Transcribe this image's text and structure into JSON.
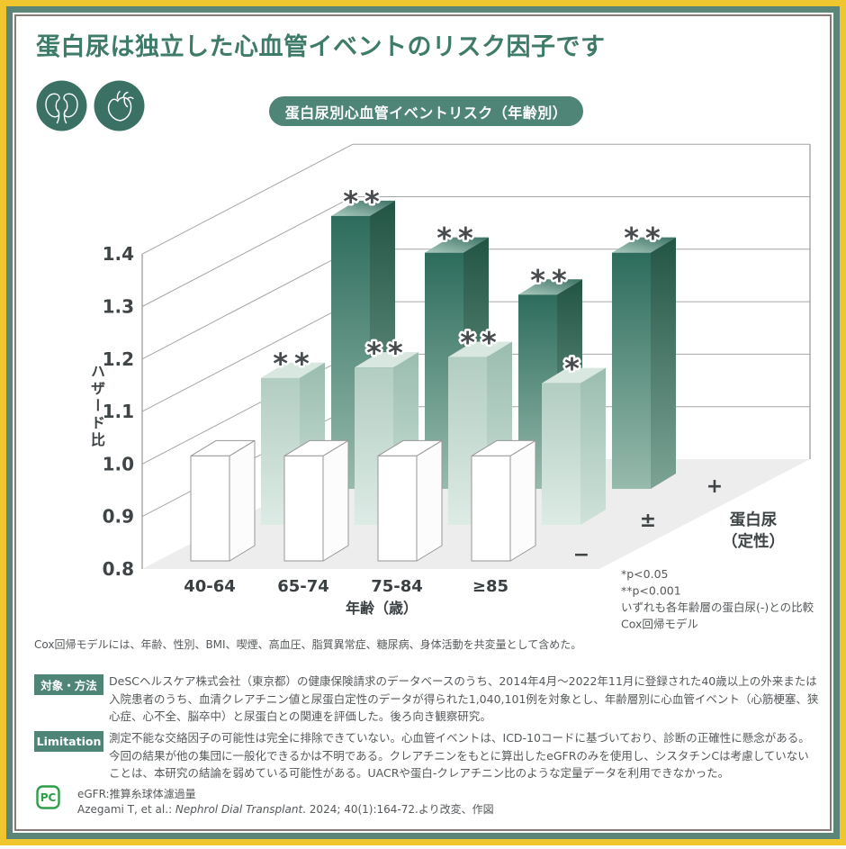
{
  "page": {
    "title": "蛋白尿は独立した心血管イベントのリスク因子です",
    "badge": "蛋白尿別心血管イベントリスク（年齢別）"
  },
  "icons": {
    "kidney": "kidneys-icon",
    "heart": "heart-icon",
    "logo": "pc-logo-icon"
  },
  "colors": {
    "frame_yellow": "#f0c62e",
    "frame_green": "#5a8577",
    "accent_green": "#4e8577",
    "title_green": "#3e7b69",
    "bar_plus_dark": "#2d6c5c",
    "bar_plusminus_light": "#c9dcd3",
    "bar_minus_white": "#ffffff",
    "logo_green": "#2f9e49",
    "floor_grey": "#ededed"
  },
  "chart_data": {
    "type": "bar",
    "title": "蛋白尿別心血管イベントリスク（年齢別）",
    "xlabel": "年齢（歳）",
    "ylabel": "ハザード比",
    "zlabel": "蛋白尿（定性）",
    "zlabel_lines": [
      "蛋白尿",
      "（定性）"
    ],
    "ylim": [
      0.8,
      1.4
    ],
    "ytick_step": 0.1,
    "grid": true,
    "categories": [
      "40-64",
      "65-74",
      "75-84",
      "≥85"
    ],
    "series": [
      {
        "name": "−",
        "values": [
          1.0,
          1.0,
          1.0,
          1.0
        ],
        "significance": [
          "",
          "",
          "",
          ""
        ]
      },
      {
        "name": "±",
        "values": [
          1.08,
          1.1,
          1.12,
          1.07
        ],
        "significance": [
          "**",
          "**",
          "**",
          "*"
        ]
      },
      {
        "name": "+",
        "values": [
          1.32,
          1.25,
          1.17,
          1.25
        ],
        "significance": [
          "**",
          "**",
          "**",
          "**"
        ]
      }
    ],
    "notes": [
      "*p<0.05",
      "**p<0.001",
      "いずれも各年齢層の蛋白尿(-)との比較",
      "Cox回帰モデル"
    ]
  },
  "chart_note": "Cox回帰モデルには、年齢、性別、BMI、喫煙、高血圧、脂質異常症、糖尿病、身体活動を共変量として含めた。",
  "sections": {
    "methods": {
      "label": "対象・方法",
      "text": "DeSCヘルスケア株式会社（東京都）の健康保険請求のデータベースのうち、2014年4月～2022年11月に登録された40歳以上の外来または入院患者のうち、血清クレアチニン値と尿蛋白定性のデータが得られた1,040,101例を対象とし、年齢層別に心血管イベント（心筋梗塞、狭心症、心不全、脳卒中）と尿蛋白との関連を評価した。後ろ向き観察研究。"
    },
    "limitation": {
      "label": "Limitation",
      "text": "測定不能な交絡因子の可能性は完全に排除できていない。心血管イベントは、ICD-10コードに基づいており、診断の正確性に懸念がある。今回の結果が他の集団に一般化できるかは不明である。クレアチニンをもとに算出したeGFRのみを使用し、シスタチンCは考慮していないことは、本研究の結論を弱めている可能性がある。UACRや蛋白-クレアチニン比のような定量データを利用できなかった。"
    }
  },
  "footer": {
    "logo_text": "PC",
    "abbr": "eGFR:推算糸球体濾過量",
    "citation_prefix": "Azegami T, et al.: ",
    "citation_journal": "Nephrol Dial Transplant",
    "citation_suffix": ". 2024; 40(1):164-72.より改変、作図"
  }
}
